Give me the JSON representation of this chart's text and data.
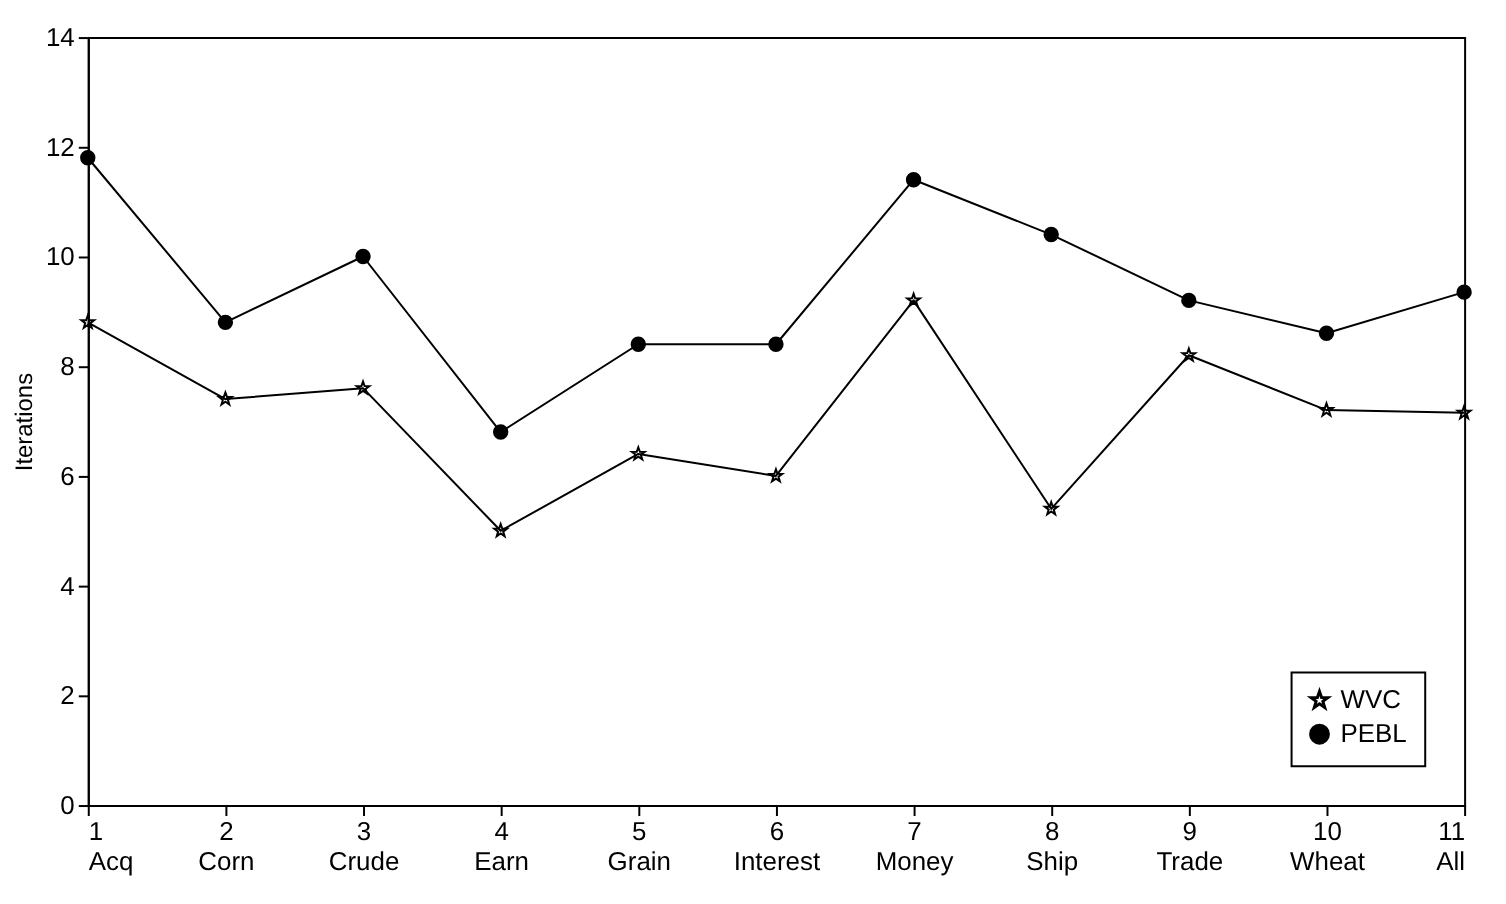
{
  "chart_data": {
    "type": "line",
    "ylabel": "Iterations",
    "x": [
      1,
      2,
      3,
      4,
      5,
      6,
      7,
      8,
      9,
      10,
      11
    ],
    "xlim": [
      1,
      11
    ],
    "ylim": [
      0,
      14
    ],
    "xticks": [
      {
        "value": 1,
        "label": "1\nAcq"
      },
      {
        "value": 2,
        "label": "2\nCorn"
      },
      {
        "value": 3,
        "label": "3\nCrude"
      },
      {
        "value": 4,
        "label": "4\nEarn"
      },
      {
        "value": 5,
        "label": "5\nGrain"
      },
      {
        "value": 6,
        "label": "6\nInterest"
      },
      {
        "value": 7,
        "label": "7\nMoney"
      },
      {
        "value": 8,
        "label": "8\nShip"
      },
      {
        "value": 9,
        "label": "9\nTrade"
      },
      {
        "value": 10,
        "label": "10\nWheat"
      },
      {
        "value": 11,
        "label": "11\nAll"
      }
    ],
    "yticks": [
      0,
      2,
      4,
      6,
      8,
      10,
      12,
      14
    ],
    "grid": false,
    "legend": "bottom right",
    "line_style": "solid",
    "series": [
      {
        "name": "WVC",
        "color": "#000000",
        "marker": "star",
        "values": [
          8.8,
          7.4,
          7.6,
          5.0,
          6.4,
          6.0,
          9.2,
          5.4,
          8.2,
          7.2,
          7.15
        ]
      },
      {
        "name": "PEBL",
        "color": "#000000",
        "marker": "circle",
        "values": [
          11.8,
          8.8,
          10.0,
          6.8,
          8.4,
          8.4,
          11.4,
          10.4,
          9.2,
          8.6,
          9.35
        ]
      }
    ]
  }
}
